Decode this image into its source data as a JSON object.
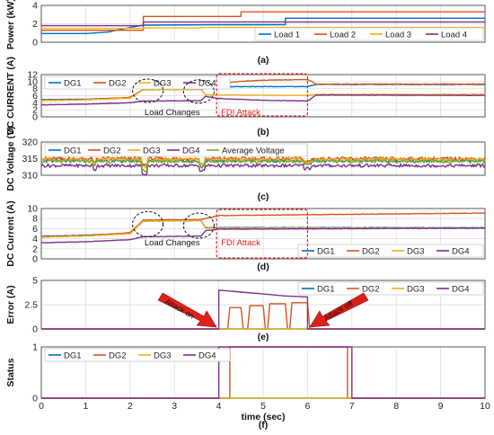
{
  "colors": {
    "dg1": "#0072BD",
    "dg2": "#D95319",
    "dg3": "#EDB120",
    "dg4": "#7E2F8E",
    "avg": "#77AC30",
    "annotation_red": "#E0201B",
    "grid": "#d9d9d9",
    "axis": "#333333"
  },
  "chart_data": [
    {
      "panel": "(a)",
      "type": "line",
      "ylabel": "Power (kW)",
      "ylim": [
        0,
        4
      ],
      "yticks": [
        "0",
        "2",
        "4"
      ],
      "xlim": [
        0,
        10
      ],
      "grid": true,
      "legend": "bottom-right",
      "series": [
        {
          "name": "Load 1",
          "color_key": "dg1",
          "points": [
            [
              0,
              0.95
            ],
            [
              1,
              0.95
            ],
            [
              1.5,
              1.1
            ],
            [
              2,
              1.6
            ],
            [
              2.3,
              1.85
            ],
            [
              4,
              1.9
            ],
            [
              5.5,
              1.9
            ],
            [
              5.5,
              2.6
            ],
            [
              10,
              2.6
            ]
          ]
        },
        {
          "name": "Load 2",
          "color_key": "dg2",
          "points": [
            [
              0,
              1.3
            ],
            [
              2.3,
              1.3
            ],
            [
              2.3,
              2.8
            ],
            [
              4.5,
              2.8
            ],
            [
              4.5,
              3.3
            ],
            [
              10,
              3.3
            ]
          ]
        },
        {
          "name": "Load 3",
          "color_key": "dg3",
          "points": [
            [
              0,
              1.5
            ],
            [
              2.3,
              1.5
            ],
            [
              2.3,
              1.55
            ],
            [
              3.6,
              1.55
            ],
            [
              3.6,
              1.6
            ],
            [
              10,
              1.6
            ]
          ]
        },
        {
          "name": "Load 4",
          "color_key": "dg4",
          "points": [
            [
              0,
              1.8
            ],
            [
              2.3,
              1.8
            ],
            [
              2.3,
              2.2
            ],
            [
              10,
              2.2
            ]
          ]
        }
      ]
    },
    {
      "panel": "(b)",
      "type": "line",
      "ylabel": "DC CURRENT (A)",
      "ylim": [
        0,
        12
      ],
      "yticks": [
        "0",
        "2",
        "4",
        "6",
        "8",
        "10",
        "12"
      ],
      "xlim": [
        0,
        10
      ],
      "grid": true,
      "legend": "top-left",
      "annotations": [
        "Load Changes",
        "FDI Attack"
      ],
      "series": [
        {
          "name": "DG1",
          "color_key": "dg1",
          "points": [
            [
              0,
              4.9
            ],
            [
              1,
              5
            ],
            [
              2,
              5.4
            ],
            [
              2.3,
              7.7
            ],
            [
              3.6,
              7.8
            ],
            [
              3.7,
              8.1
            ],
            [
              4,
              8.3
            ],
            [
              4.3,
              8.6
            ],
            [
              6,
              8.6
            ],
            [
              6.2,
              9.2
            ],
            [
              10,
              9.2
            ]
          ]
        },
        {
          "name": "DG2",
          "color_key": "dg2",
          "points": [
            [
              0,
              4.7
            ],
            [
              1,
              4.9
            ],
            [
              2,
              5.5
            ],
            [
              2.3,
              7.8
            ],
            [
              3.6,
              7.9
            ],
            [
              3.7,
              8.4
            ],
            [
              4,
              9.6
            ],
            [
              4.5,
              10.1
            ],
            [
              5,
              10.4
            ],
            [
              6,
              10.6
            ],
            [
              6.2,
              9.3
            ],
            [
              10,
              9.3
            ]
          ]
        },
        {
          "name": "DG3",
          "color_key": "dg3",
          "points": [
            [
              0,
              4.6
            ],
            [
              1,
              4.8
            ],
            [
              2,
              5.3
            ],
            [
              2.3,
              7.7
            ],
            [
              3.6,
              7.8
            ],
            [
              3.7,
              6.3
            ],
            [
              4,
              6.2
            ],
            [
              6,
              6.1
            ],
            [
              6.2,
              6.4
            ],
            [
              10,
              6.4
            ]
          ]
        },
        {
          "name": "DG4",
          "color_key": "dg4",
          "points": [
            [
              0,
              3.4
            ],
            [
              1,
              3.6
            ],
            [
              2,
              4
            ],
            [
              2.3,
              4.5
            ],
            [
              3.6,
              4.6
            ],
            [
              3.7,
              5.8
            ],
            [
              4,
              5.2
            ],
            [
              5,
              4.7
            ],
            [
              6,
              4.5
            ],
            [
              6.2,
              6.2
            ],
            [
              10,
              6.1
            ]
          ]
        }
      ]
    },
    {
      "panel": "(c)",
      "type": "line",
      "ylabel": "DC Voltage (V)",
      "ylim": [
        310,
        320
      ],
      "yticks": [
        "310",
        "315",
        "320"
      ],
      "xlim": [
        0,
        10
      ],
      "grid": true,
      "legend": "top",
      "series": [
        {
          "name": "DG1",
          "color_key": "dg1",
          "points": [
            [
              0,
              314.4
            ],
            [
              10,
              314.4
            ]
          ]
        },
        {
          "name": "DG2",
          "color_key": "dg2",
          "points": [
            [
              0,
              315
            ],
            [
              10,
              315
            ]
          ]
        },
        {
          "name": "DG3",
          "color_key": "dg3",
          "points": [
            [
              0,
              314.7
            ],
            [
              10,
              314.7
            ]
          ]
        },
        {
          "name": "DG4",
          "color_key": "dg4",
          "points": [
            [
              0,
              312.9
            ],
            [
              10,
              312.9
            ]
          ]
        },
        {
          "name": "Average Voltage",
          "color_key": "avg",
          "points": [
            [
              0,
              314.2
            ],
            [
              10,
              314.2
            ]
          ]
        }
      ]
    },
    {
      "panel": "(d)",
      "type": "line",
      "ylabel": "DC Current (A)",
      "ylim": [
        0,
        10
      ],
      "yticks": [
        "0",
        "2",
        "4",
        "6",
        "8",
        "10"
      ],
      "xlim": [
        0,
        10
      ],
      "grid": true,
      "legend": "bottom-right",
      "annotations": [
        "Load Changes",
        "FDI Attack"
      ],
      "series": [
        {
          "name": "DG1",
          "color_key": "dg1",
          "points": [
            [
              0,
              4.5
            ],
            [
              1,
              4.7
            ],
            [
              2,
              5.1
            ],
            [
              2.3,
              7.5
            ],
            [
              3.6,
              7.6
            ],
            [
              3.7,
              6.2
            ],
            [
              4,
              6.2
            ],
            [
              10,
              6.2
            ]
          ]
        },
        {
          "name": "DG2",
          "color_key": "dg2",
          "points": [
            [
              0,
              4.4
            ],
            [
              1,
              4.6
            ],
            [
              2,
              5.2
            ],
            [
              2.3,
              7.7
            ],
            [
              3.6,
              7.8
            ],
            [
              4,
              8.6
            ],
            [
              10,
              9.1
            ]
          ]
        },
        {
          "name": "DG3",
          "color_key": "dg3",
          "points": [
            [
              0,
              4.3
            ],
            [
              1,
              4.5
            ],
            [
              2,
              5
            ],
            [
              2.3,
              7.5
            ],
            [
              3.6,
              7.6
            ],
            [
              3.7,
              6.1
            ],
            [
              4,
              6.1
            ],
            [
              10,
              6.1
            ]
          ]
        },
        {
          "name": "DG4",
          "color_key": "dg4",
          "points": [
            [
              0,
              3.2
            ],
            [
              1,
              3.4
            ],
            [
              2,
              3.8
            ],
            [
              2.3,
              4.4
            ],
            [
              3.6,
              4.5
            ],
            [
              3.7,
              5.6
            ],
            [
              4,
              5.9
            ],
            [
              10,
              6.1
            ]
          ]
        }
      ]
    },
    {
      "panel": "(e)",
      "type": "line",
      "ylabel": "Error (A)",
      "ylim": [
        0,
        5
      ],
      "yticks": [
        "0",
        "2.5",
        "5"
      ],
      "xlim": [
        0,
        10
      ],
      "grid": true,
      "legend": "top-right",
      "annotations": [
        "Attack on",
        "Attack off"
      ],
      "series": [
        {
          "name": "DG1",
          "color_key": "dg1",
          "points": [
            [
              0,
              0
            ],
            [
              10,
              0
            ]
          ]
        },
        {
          "name": "DG2",
          "color_key": "dg2",
          "points": [
            [
              0,
              0
            ],
            [
              4.2,
              0
            ],
            [
              4.25,
              2.2
            ],
            [
              4.5,
              2.2
            ],
            [
              4.55,
              0
            ],
            [
              4.65,
              0
            ],
            [
              4.7,
              2.4
            ],
            [
              5,
              2.4
            ],
            [
              5.05,
              0
            ],
            [
              5.1,
              0
            ],
            [
              5.15,
              2.6
            ],
            [
              5.5,
              2.6
            ],
            [
              5.55,
              0
            ],
            [
              5.6,
              0
            ],
            [
              5.65,
              2.7
            ],
            [
              6,
              2.7
            ],
            [
              6.05,
              0
            ],
            [
              10,
              0
            ]
          ]
        },
        {
          "name": "DG3",
          "color_key": "dg3",
          "points": [
            [
              0,
              0
            ],
            [
              10,
              0
            ]
          ]
        },
        {
          "name": "DG4",
          "color_key": "dg4",
          "points": [
            [
              0,
              0
            ],
            [
              4,
              0
            ],
            [
              4,
              4
            ],
            [
              4.5,
              3.8
            ],
            [
              5,
              3.6
            ],
            [
              5.5,
              3.4
            ],
            [
              6,
              3.3
            ],
            [
              6,
              0
            ],
            [
              10,
              0
            ]
          ]
        }
      ]
    },
    {
      "panel": "(f)",
      "type": "line",
      "ylabel": "Status",
      "ylim": [
        0,
        1
      ],
      "yticks": [
        "0",
        "1"
      ],
      "xlim": [
        0,
        10
      ],
      "xticks": [
        "0",
        "1",
        "2",
        "3",
        "4",
        "5",
        "6",
        "7",
        "8",
        "9",
        "10"
      ],
      "xlabel": "time (sec)",
      "grid": true,
      "legend": "top-left",
      "series": [
        {
          "name": "DG1",
          "color_key": "dg1",
          "points": [
            [
              0,
              0
            ],
            [
              10,
              0
            ]
          ]
        },
        {
          "name": "DG2",
          "color_key": "dg2",
          "points": [
            [
              0,
              0
            ],
            [
              4.25,
              0
            ],
            [
              4.25,
              1
            ],
            [
              6.9,
              1
            ],
            [
              6.9,
              0
            ],
            [
              10,
              0
            ]
          ]
        },
        {
          "name": "DG3",
          "color_key": "dg3",
          "points": [
            [
              0,
              0
            ],
            [
              10,
              0
            ]
          ]
        },
        {
          "name": "DG4",
          "color_key": "dg4",
          "points": [
            [
              0,
              0
            ],
            [
              4,
              0
            ],
            [
              4,
              1
            ],
            [
              7,
              1
            ],
            [
              7,
              0
            ],
            [
              10,
              0
            ]
          ]
        }
      ]
    }
  ]
}
